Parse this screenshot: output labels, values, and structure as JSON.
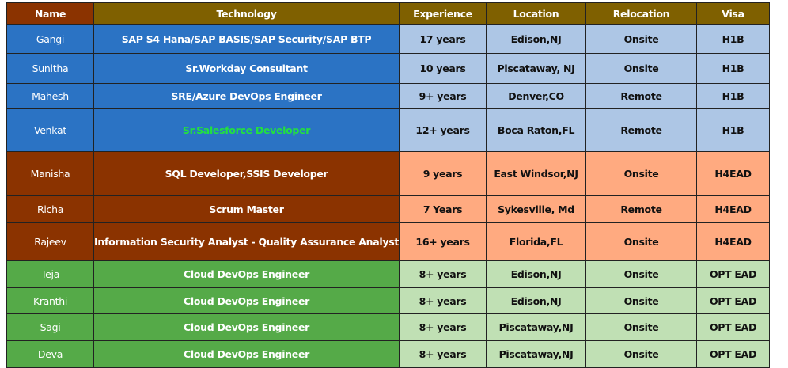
{
  "headers": [
    "Name",
    "Technology",
    "Experience",
    "Location",
    "Relocation",
    "Visa"
  ],
  "colors": {
    "header": "#7F6000",
    "name_header": "#8B3300",
    "blue": "#2B73C4",
    "light_blue": "#ADC6E5",
    "brown": "#8B3300",
    "peach": "#FFAA80",
    "green": "#55AA48",
    "light_green": "#C0E0B4",
    "link": "#22E040"
  },
  "rows": [
    {
      "name": "Gangi",
      "technology": "SAP S4 Hana/SAP BASIS/SAP Security/SAP BTP",
      "experience": "17 years",
      "location": "Edison,NJ",
      "relocation": "Onsite",
      "visa": "H1B"
    },
    {
      "name": "Sunitha",
      "technology": "Sr.Workday Consultant",
      "experience": "10 years",
      "location": "Piscataway, NJ",
      "relocation": "Onsite",
      "visa": "H1B"
    },
    {
      "name": "Mahesh",
      "technology": "SRE/Azure DevOps Engineer",
      "experience": "9+ years",
      "location": "Denver,CO",
      "relocation": "Remote",
      "visa": "H1B"
    },
    {
      "name": "Venkat",
      "technology": "Sr.Salesforce Developer",
      "experience": "12+ years",
      "location": "Boca Raton,FL",
      "relocation": "Remote",
      "visa": "H1B"
    },
    {
      "name": "Manisha",
      "technology": "SQL Developer,SSIS Developer",
      "experience": "9 years",
      "location": "East Windsor,NJ",
      "relocation": "Onsite",
      "visa": "H4EAD"
    },
    {
      "name": "Richa",
      "technology": "Scrum Master",
      "experience": "7 Years",
      "location": "Sykesville, Md",
      "relocation": "Remote",
      "visa": "H4EAD"
    },
    {
      "name": "Rajeev",
      "technology": "Information Security Analyst - Quality Assurance Analyst",
      "experience": "16+ years",
      "location": "Florida,FL",
      "relocation": "Onsite",
      "visa": "H4EAD"
    },
    {
      "name": "Teja",
      "technology": "Cloud DevOps Engineer",
      "experience": "8+ years",
      "location": "Edison,NJ",
      "relocation": "Onsite",
      "visa": "OPT EAD"
    },
    {
      "name": "Kranthi",
      "technology": "Cloud DevOps Engineer",
      "experience": "8+ years",
      "location": "Edison,NJ",
      "relocation": "Onsite",
      "visa": "OPT EAD"
    },
    {
      "name": "Sagi",
      "technology": "Cloud DevOps Engineer",
      "experience": "8+ years",
      "location": "Piscataway,NJ",
      "relocation": "Onsite",
      "visa": "OPT EAD"
    },
    {
      "name": "Deva",
      "technology": "Cloud DevOps Engineer",
      "experience": "8+ years",
      "location": "Piscataway,NJ",
      "relocation": "Onsite",
      "visa": "OPT EAD"
    }
  ]
}
